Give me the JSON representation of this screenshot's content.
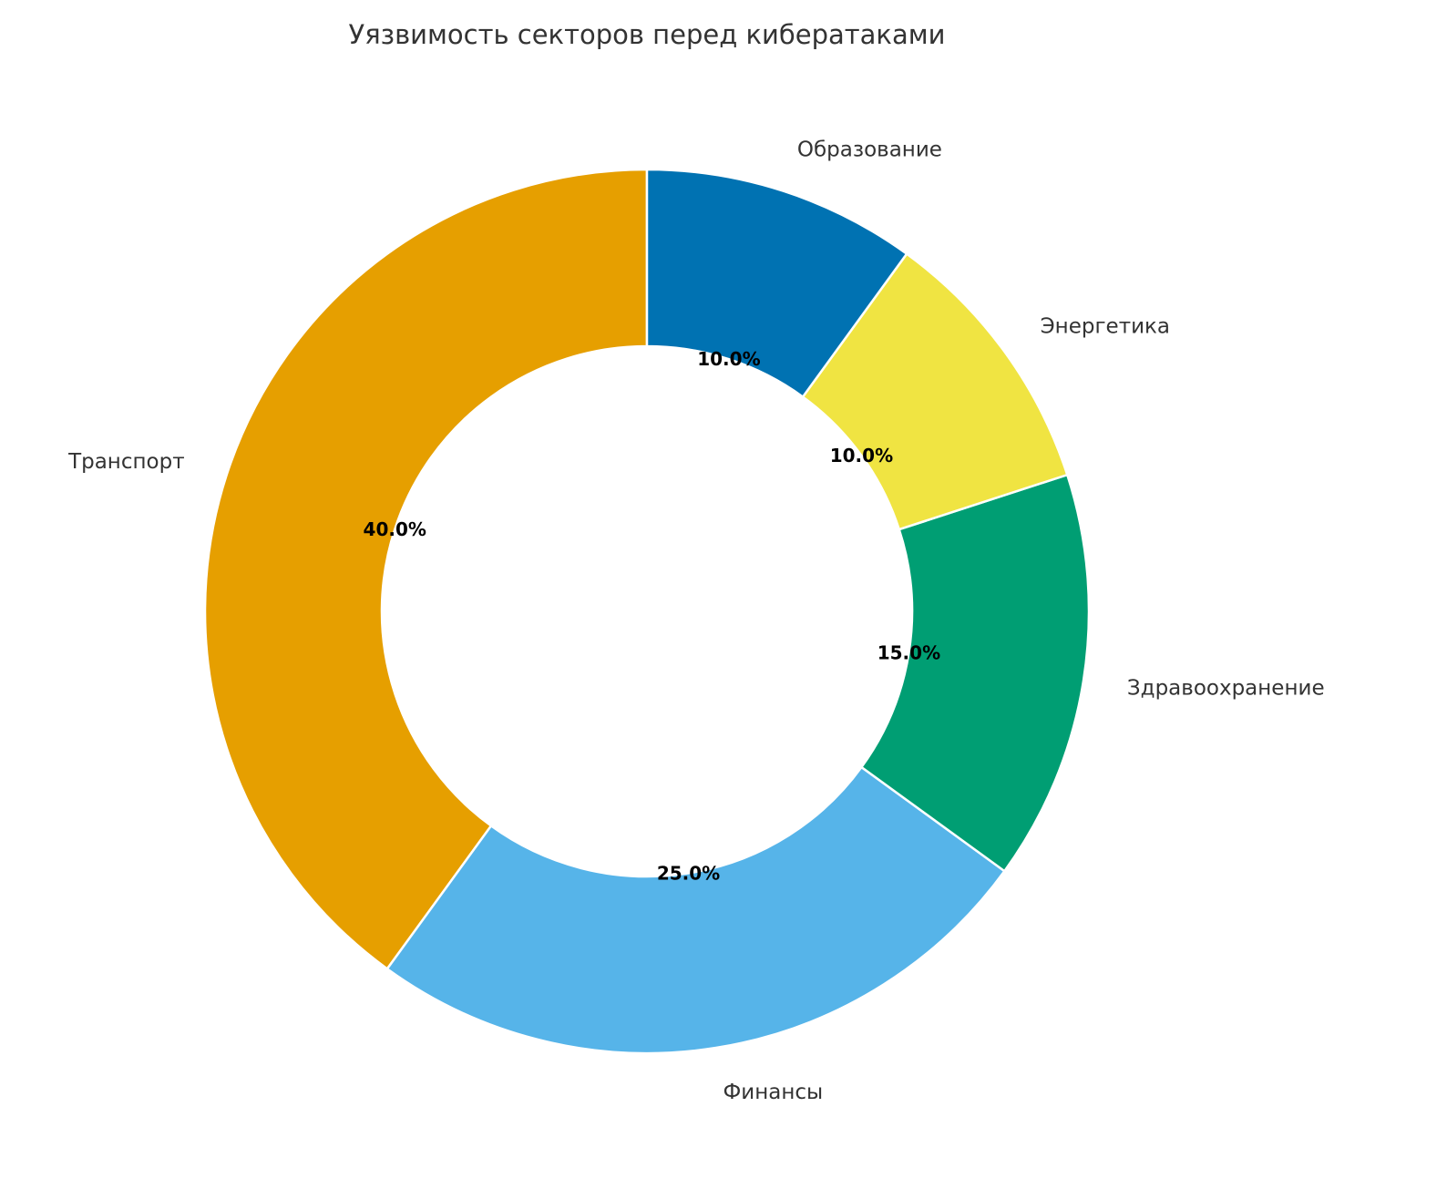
{
  "chart_data": {
    "type": "pie",
    "donut": true,
    "title": "Уязвимость секторов перед кибератаками",
    "start_angle_deg": 90,
    "direction": "counterclockwise",
    "slices": [
      {
        "label": "Транспорт",
        "value": 40.0,
        "pct_label": "40.0%",
        "color": "#E69F00"
      },
      {
        "label": "Финансы",
        "value": 25.0,
        "pct_label": "25.0%",
        "color": "#56B4E9"
      },
      {
        "label": "Здравоохранение",
        "value": 15.0,
        "pct_label": "15.0%",
        "color": "#009E73"
      },
      {
        "label": "Энергетика",
        "value": 10.0,
        "pct_label": "10.0%",
        "color": "#F0E442"
      },
      {
        "label": "Образование",
        "value": 10.0,
        "pct_label": "10.0%",
        "color": "#0072B2"
      }
    ]
  }
}
